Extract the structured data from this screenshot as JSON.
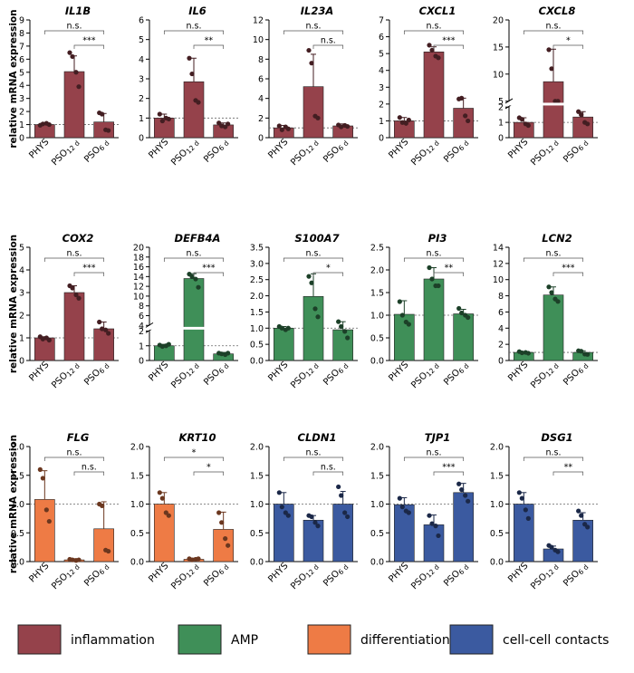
{
  "chart_data": {
    "type": "bar",
    "ylabel": "relative mRNA expression",
    "categories": [
      "PHYS",
      "PSO 12 d",
      "PSO 6 d"
    ],
    "category_parts": [
      [
        "PHYS",
        ""
      ],
      [
        "PSO",
        "12 d"
      ],
      [
        "PSO",
        "6 d"
      ]
    ],
    "reference_line": 1,
    "legend": [
      {
        "label": "inflammation",
        "color": "#95424b"
      },
      {
        "label": "AMP",
        "color": "#3f8f58"
      },
      {
        "label": "differentiation",
        "color": "#ee7b45"
      },
      {
        "label": "cell-cell contacts",
        "color": "#3b5aa0"
      }
    ],
    "panels": [
      {
        "title": "IL1B",
        "group": "inflammation",
        "ylim": [
          0,
          9
        ],
        "ticks": [
          "0",
          "1",
          "2",
          "3",
          "4",
          "5",
          "6",
          "7",
          "8",
          "9"
        ],
        "tickvals": [
          0,
          1,
          2,
          3,
          4,
          5,
          6,
          7,
          8,
          9
        ],
        "values": [
          1.0,
          5.05,
          1.2
        ],
        "errors": [
          0.1,
          1.2,
          0.65
        ],
        "points": [
          [
            0.95,
            1.05,
            1.1,
            1.0
          ],
          [
            6.5,
            6.2,
            5.0,
            3.9
          ],
          [
            1.9,
            1.8,
            0.6,
            0.55
          ]
        ],
        "sig": [
          {
            "label": "n.s."
          },
          {
            "label": "***"
          }
        ]
      },
      {
        "title": "IL6",
        "group": "inflammation",
        "ylim": [
          0,
          6
        ],
        "ticks": [
          "0",
          "1",
          "2",
          "3",
          "4",
          "5",
          "6"
        ],
        "tickvals": [
          0,
          1,
          2,
          3,
          4,
          5,
          6
        ],
        "values": [
          1.0,
          2.85,
          0.65
        ],
        "errors": [
          0.2,
          1.2,
          0.1
        ],
        "points": [
          [
            1.2,
            0.85,
            1.0,
            0.95
          ],
          [
            4.05,
            3.25,
            1.9,
            1.8
          ],
          [
            0.75,
            0.6,
            0.55,
            0.7
          ]
        ],
        "sig": [
          {
            "label": "n.s."
          },
          {
            "label": "**"
          }
        ]
      },
      {
        "title": "IL23A",
        "group": "inflammation",
        "ylim": [
          0,
          12
        ],
        "ticks": [
          "0",
          "2",
          "4",
          "6",
          "8",
          "10",
          "12"
        ],
        "tickvals": [
          0,
          2,
          4,
          6,
          8,
          10,
          12
        ],
        "values": [
          1.0,
          5.2,
          1.2
        ],
        "errors": [
          0.25,
          3.3,
          0.2
        ],
        "points": [
          [
            1.2,
            0.8,
            1.1,
            0.9
          ],
          [
            8.9,
            7.6,
            2.2,
            2.0
          ],
          [
            1.3,
            1.1,
            1.25,
            1.15
          ]
        ],
        "sig": [
          {
            "label": "n.s."
          },
          {
            "label": "n.s."
          }
        ]
      },
      {
        "title": "CXCL1",
        "group": "inflammation",
        "ylim": [
          0,
          7
        ],
        "ticks": [
          "0",
          "1",
          "2",
          "3",
          "4",
          "5",
          "6",
          "7"
        ],
        "tickvals": [
          0,
          1,
          2,
          3,
          4,
          5,
          6,
          7
        ],
        "values": [
          1.0,
          5.1,
          1.75
        ],
        "errors": [
          0.2,
          0.3,
          0.6
        ],
        "points": [
          [
            1.2,
            0.9,
            0.85,
            1.05
          ],
          [
            5.5,
            5.2,
            4.85,
            4.75
          ],
          [
            2.3,
            2.35,
            1.3,
            1.0
          ]
        ],
        "sig": [
          {
            "label": "n.s."
          },
          {
            "label": "***"
          }
        ]
      },
      {
        "title": "CXCL8",
        "group": "inflammation",
        "broken": true,
        "ticks": [
          "0",
          "1",
          "2",
          "5",
          "10",
          "15",
          "20"
        ],
        "tickvals": [
          0,
          1,
          2,
          5,
          10,
          15,
          20
        ],
        "values": [
          1.0,
          8.6,
          1.35
        ],
        "errors": [
          0.3,
          6.0,
          0.35
        ],
        "points": [
          [
            1.3,
            1.2,
            0.9,
            0.8
          ],
          [
            14.5,
            11.0,
            5.0,
            4.2
          ],
          [
            1.7,
            1.5,
            1.0,
            0.9
          ]
        ],
        "sig": [
          {
            "label": "n.s."
          },
          {
            "label": "*"
          }
        ]
      },
      {
        "title": "COX2",
        "group": "inflammation",
        "ylim": [
          0,
          5
        ],
        "ticks": [
          "0",
          "1",
          "2",
          "3",
          "4",
          "5"
        ],
        "tickvals": [
          0,
          1,
          2,
          3,
          4,
          5
        ],
        "values": [
          1.0,
          3.0,
          1.4
        ],
        "errors": [
          0.05,
          0.3,
          0.3
        ],
        "points": [
          [
            1.05,
            0.95,
            1.0,
            0.9
          ],
          [
            3.3,
            3.2,
            2.9,
            2.75
          ],
          [
            1.7,
            1.4,
            1.35,
            1.2
          ]
        ],
        "sig": [
          {
            "label": "n.s."
          },
          {
            "label": "***"
          }
        ]
      },
      {
        "title": "DEFB4A",
        "group": "AMP",
        "broken": true,
        "ticks": [
          "0",
          "1",
          "2",
          "4",
          "6",
          "8",
          "10",
          "12",
          "14",
          "16",
          "18",
          "20"
        ],
        "tickvals": [
          0,
          1,
          2,
          4,
          6,
          8,
          10,
          12,
          14,
          16,
          18,
          20
        ],
        "values": [
          1.0,
          13.6,
          0.45
        ],
        "errors": [
          0.1,
          1.0,
          0.1
        ],
        "points": [
          [
            1.05,
            0.95,
            1.0,
            1.1
          ],
          [
            14.5,
            14.0,
            13.5,
            11.8
          ],
          [
            0.5,
            0.45,
            0.4,
            0.5
          ]
        ],
        "sig": [
          {
            "label": "n.s."
          },
          {
            "label": "***"
          }
        ]
      },
      {
        "title": "S100A7",
        "group": "AMP",
        "ylim": [
          0,
          3.5
        ],
        "ticks": [
          "0.0",
          "0.5",
          "1.0",
          "1.5",
          "2.0",
          "2.5",
          "3.0",
          "3.5"
        ],
        "tickvals": [
          0,
          0.5,
          1,
          1.5,
          2,
          2.5,
          3,
          3.5
        ],
        "values": [
          1.0,
          1.98,
          0.95
        ],
        "errors": [
          0.05,
          0.7,
          0.25
        ],
        "points": [
          [
            1.05,
            1.0,
            0.95,
            1.0
          ],
          [
            2.6,
            2.4,
            1.6,
            1.35
          ],
          [
            1.2,
            1.05,
            0.9,
            0.7
          ]
        ],
        "sig": [
          {
            "label": "n.s."
          },
          {
            "label": "*"
          }
        ]
      },
      {
        "title": "PI3",
        "group": "AMP",
        "ylim": [
          0,
          2.5
        ],
        "ticks": [
          "0.0",
          "0.5",
          "1.0",
          "1.5",
          "2.0",
          "2.5"
        ],
        "tickvals": [
          0,
          0.5,
          1,
          1.5,
          2,
          2.5
        ],
        "values": [
          1.02,
          1.8,
          1.03
        ],
        "errors": [
          0.3,
          0.25,
          0.1
        ],
        "points": [
          [
            1.3,
            1.0,
            0.85,
            0.8
          ],
          [
            2.05,
            1.8,
            1.65,
            1.65
          ],
          [
            1.15,
            1.05,
            1.0,
            0.95
          ]
        ],
        "sig": [
          {
            "label": "n.s."
          },
          {
            "label": "**"
          }
        ]
      },
      {
        "title": "LCN2",
        "group": "AMP",
        "ylim": [
          0,
          14
        ],
        "ticks": [
          "0",
          "2",
          "4",
          "6",
          "8",
          "10",
          "12",
          "14"
        ],
        "tickvals": [
          0,
          2,
          4,
          6,
          8,
          10,
          12,
          14
        ],
        "values": [
          1.0,
          8.1,
          1.0
        ],
        "errors": [
          0.1,
          1.0,
          0.2
        ],
        "points": [
          [
            1.1,
            0.95,
            1.0,
            0.9
          ],
          [
            9.1,
            8.4,
            7.6,
            7.3
          ],
          [
            1.2,
            1.15,
            0.8,
            0.75
          ]
        ],
        "sig": [
          {
            "label": "n.s."
          },
          {
            "label": "***"
          }
        ]
      },
      {
        "title": "FLG",
        "group": "differentiation",
        "ylim": [
          0,
          2.0
        ],
        "ticks": [
          "0.0",
          "0.5",
          "1.0",
          "1.5",
          "2.0"
        ],
        "tickvals": [
          0,
          0.5,
          1,
          1.5,
          2
        ],
        "values": [
          1.08,
          0.03,
          0.57
        ],
        "errors": [
          0.5,
          0.02,
          0.47
        ],
        "points": [
          [
            1.6,
            1.45,
            0.9,
            0.7
          ],
          [
            0.04,
            0.03,
            0.02,
            0.03
          ],
          [
            1.0,
            0.97,
            0.2,
            0.18
          ]
        ],
        "sig": [
          {
            "label": "n.s."
          },
          {
            "label": "n.s."
          }
        ]
      },
      {
        "title": "KRT10",
        "group": "differentiation",
        "ylim": [
          0,
          2.0
        ],
        "ticks": [
          "0.0",
          "0.5",
          "1.0",
          "1.5",
          "2.0"
        ],
        "tickvals": [
          0,
          0.5,
          1,
          1.5,
          2
        ],
        "values": [
          1.0,
          0.04,
          0.56
        ],
        "errors": [
          0.2,
          0.02,
          0.3
        ],
        "points": [
          [
            1.2,
            1.1,
            0.85,
            0.8
          ],
          [
            0.05,
            0.03,
            0.04,
            0.05
          ],
          [
            0.85,
            0.68,
            0.4,
            0.28
          ]
        ],
        "sig": [
          {
            "label": "*"
          },
          {
            "label": "*"
          }
        ]
      },
      {
        "title": "CLDN1",
        "group": "cell-cell contacts",
        "ylim": [
          0,
          2.0
        ],
        "ticks": [
          "0.0",
          "0.5",
          "1.0",
          "1.5",
          "2.0"
        ],
        "tickvals": [
          0,
          0.5,
          1,
          1.5,
          2
        ],
        "values": [
          1.0,
          0.72,
          1.0
        ],
        "errors": [
          0.2,
          0.08,
          0.22
        ],
        "points": [
          [
            1.2,
            0.95,
            0.85,
            0.8
          ],
          [
            0.8,
            0.78,
            0.68,
            0.62
          ],
          [
            1.3,
            1.15,
            0.85,
            0.78
          ]
        ],
        "sig": [
          {
            "label": "n.s."
          },
          {
            "label": "n.s."
          }
        ]
      },
      {
        "title": "TJP1",
        "group": "cell-cell contacts",
        "ylim": [
          0,
          2.0
        ],
        "ticks": [
          "0.0",
          "0.5",
          "1.0",
          "1.5",
          "2.0"
        ],
        "tickvals": [
          0,
          0.5,
          1,
          1.5,
          2
        ],
        "values": [
          0.99,
          0.64,
          1.2
        ],
        "errors": [
          0.12,
          0.17,
          0.16
        ],
        "points": [
          [
            1.1,
            0.95,
            0.88,
            0.85
          ],
          [
            0.8,
            0.66,
            0.62,
            0.45
          ],
          [
            1.35,
            1.25,
            1.15,
            1.05
          ]
        ],
        "sig": [
          {
            "label": "n.s."
          },
          {
            "label": "***"
          }
        ]
      },
      {
        "title": "DSG1",
        "group": "cell-cell contacts",
        "ylim": [
          0,
          2.0
        ],
        "ticks": [
          "0.0",
          "0.5",
          "1.0",
          "1.5",
          "2.0"
        ],
        "tickvals": [
          0,
          0.5,
          1,
          1.5,
          2
        ],
        "values": [
          1.0,
          0.22,
          0.72
        ],
        "errors": [
          0.2,
          0.05,
          0.13
        ],
        "points": [
          [
            1.2,
            1.1,
            0.9,
            0.75
          ],
          [
            0.28,
            0.25,
            0.2,
            0.17
          ],
          [
            0.88,
            0.8,
            0.65,
            0.6
          ]
        ],
        "sig": [
          {
            "label": "n.s."
          },
          {
            "label": "**"
          }
        ]
      }
    ]
  }
}
